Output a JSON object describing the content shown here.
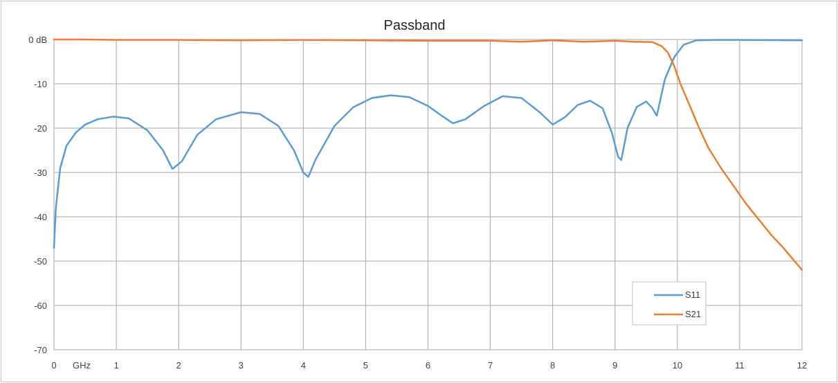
{
  "chart_data": {
    "type": "line",
    "title": "Passband",
    "xlabel": "GHz",
    "ylabel": "",
    "xlim": [
      0,
      12
    ],
    "ylim": [
      -70,
      0
    ],
    "x_ticks": [
      "0",
      "1",
      "2",
      "3",
      "4",
      "5",
      "6",
      "7",
      "8",
      "9",
      "10",
      "11",
      "12"
    ],
    "y_ticks": [
      "0 dB",
      "-10",
      "-20",
      "-30",
      "-40",
      "-50",
      "-60",
      "-70"
    ],
    "grid": true,
    "legend_position": "bottom-right",
    "series": [
      {
        "name": "S11",
        "color": "#5b9bd5",
        "x": [
          0,
          0.03,
          0.1,
          0.2,
          0.35,
          0.5,
          0.7,
          0.95,
          1.2,
          1.5,
          1.75,
          1.9,
          2.05,
          2.3,
          2.6,
          3.0,
          3.3,
          3.6,
          3.85,
          4.0,
          4.08,
          4.2,
          4.5,
          4.8,
          5.1,
          5.4,
          5.7,
          6.0,
          6.2,
          6.4,
          6.6,
          6.9,
          7.2,
          7.5,
          7.8,
          8.0,
          8.2,
          8.4,
          8.6,
          8.8,
          8.95,
          9.05,
          9.1,
          9.2,
          9.35,
          9.5,
          9.6,
          9.67,
          9.8,
          9.95,
          10.1,
          10.3,
          10.6,
          11.0,
          12.0
        ],
        "y": [
          -47,
          -38,
          -29,
          -24,
          -21,
          -19.2,
          -18,
          -17.4,
          -17.8,
          -20.5,
          -25,
          -29.2,
          -27.5,
          -21.5,
          -18,
          -16.4,
          -16.8,
          -19.5,
          -25,
          -30,
          -31,
          -27,
          -19.5,
          -15.3,
          -13.2,
          -12.6,
          -13,
          -15,
          -17,
          -18.9,
          -18,
          -15,
          -12.8,
          -13.2,
          -16.5,
          -19.2,
          -17.5,
          -14.8,
          -13.8,
          -15.5,
          -21,
          -26.5,
          -27.2,
          -20,
          -15.2,
          -14,
          -15.5,
          -17.2,
          -9,
          -4,
          -1.2,
          -0.2,
          -0.1,
          -0.1,
          -0.2
        ]
      },
      {
        "name": "S21",
        "color": "#ed7d31",
        "x": [
          0,
          0.5,
          1,
          2,
          3,
          4,
          5,
          6,
          7,
          7.5,
          8,
          8.5,
          9,
          9.3,
          9.6,
          9.75,
          9.85,
          9.95,
          10.05,
          10.2,
          10.35,
          10.5,
          10.7,
          10.9,
          11.1,
          11.3,
          11.5,
          11.7,
          11.85,
          12.0
        ],
        "y": [
          0,
          0,
          -0.1,
          -0.1,
          -0.2,
          -0.1,
          -0.2,
          -0.3,
          -0.3,
          -0.5,
          -0.2,
          -0.5,
          -0.3,
          -0.5,
          -0.6,
          -1.5,
          -3,
          -6,
          -10,
          -15,
          -20,
          -24.5,
          -29,
          -33,
          -37,
          -40.5,
          -44,
          -47,
          -49.5,
          -52
        ]
      }
    ]
  }
}
